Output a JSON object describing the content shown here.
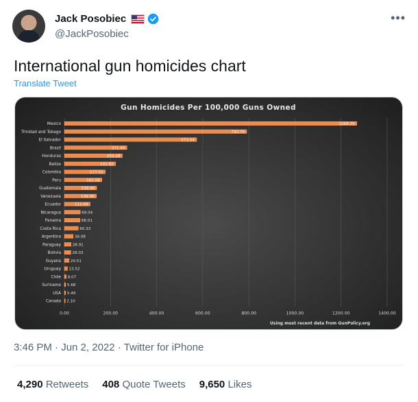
{
  "tweet": {
    "display_name": "Jack Posobiec",
    "handle": "@JackPosobiec",
    "text": "International gun homicides chart",
    "translate_label": "Translate Tweet",
    "timestamp": "3:46 PM · Jun 2, 2022 · Twitter for iPhone",
    "more_label": "•••",
    "verified_color": "#1d9bf0",
    "icons": [
      "us-flag-icon",
      "verified-badge-icon",
      "more-options-icon"
    ]
  },
  "stats": {
    "retweets_count": "4,290",
    "retweets_label": "Retweets",
    "quotes_count": "408",
    "quotes_label": "Quote Tweets",
    "likes_count": "9,650",
    "likes_label": "Likes"
  },
  "chart_data": {
    "type": "bar",
    "orientation": "horizontal",
    "title": "Gun Homicides Per 100,000 Guns Owned",
    "source_note": "Using most recent data from GunPolicy.org",
    "bar_color": "#f08a4b",
    "grid": true,
    "xlim": [
      0,
      1400
    ],
    "x_ticks": [
      "0.00",
      "200.00",
      "400.00",
      "600.00",
      "800.00",
      "1000.00",
      "1200.00",
      "1400.00"
    ],
    "x_tick_values": [
      0,
      200,
      400,
      600,
      800,
      1000,
      1200,
      1400
    ],
    "categories": [
      "Mexico",
      "Trinidad and Tobago",
      "El Salvador",
      "Brazil",
      "Honduras",
      "Belize",
      "Colombia",
      "Peru",
      "Guatemala",
      "Venezuela",
      "Ecuador",
      "Nicaragua",
      "Panama",
      "Costa Rica",
      "Argentina",
      "Paraguay",
      "Bolivia",
      "Guyana",
      "Uruguay",
      "Chile",
      "Suriname",
      "USA",
      "Canada"
    ],
    "values": [
      1268.25,
      790.7,
      573.54,
      271.49,
      251.28,
      221.82,
      177.51,
      162.68,
      139.96,
      139.0,
      111.69,
      69.04,
      68.01,
      60.33,
      38.08,
      28.91,
      28.03,
      20.51,
      13.52,
      8.07,
      5.68,
      5.49,
      2.1
    ],
    "value_labels": [
      "1268.25",
      "790.70",
      "573.54",
      "271.49",
      "251.28",
      "221.82",
      "177.51",
      "162.68",
      "139.96",
      "139.00",
      "111.69",
      "69.04",
      "68.01",
      "60.33",
      "38.08",
      "28.91",
      "28.03",
      "20.51",
      "13.52",
      "8.07",
      "5.68",
      "5.49",
      "2.10"
    ]
  }
}
